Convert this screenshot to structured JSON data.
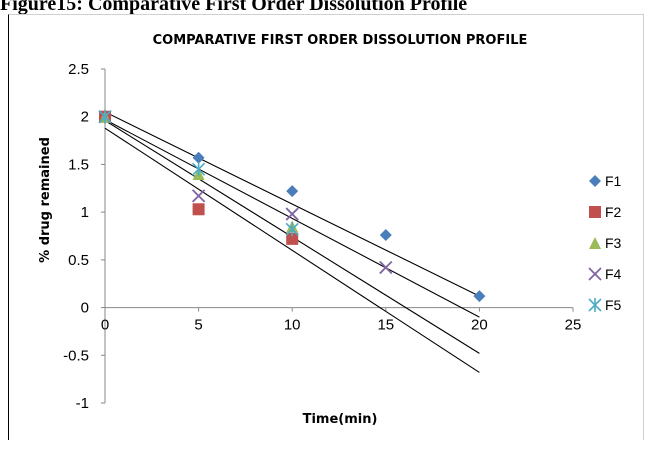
{
  "caption": "Figure15: Comparative First Order Dissolution Profile",
  "chart_data": {
    "type": "scatter",
    "title": "COMPARATIVE FIRST ORDER DISSOLUTION PROFILE",
    "xlabel": "Time(min)",
    "ylabel": "% drug remained",
    "xlim": [
      0,
      25
    ],
    "ylim": [
      -1,
      2.5
    ],
    "x_ticks": [
      0,
      5,
      10,
      15,
      20,
      25
    ],
    "y_ticks": [
      2.5,
      2,
      1.5,
      1,
      0.5,
      0,
      -0.5,
      -1
    ],
    "grid": false,
    "legend_position": "right",
    "series": [
      {
        "name": "F1",
        "color": "#4a7ebb",
        "marker": "diamond",
        "x": [
          0,
          5,
          10,
          15,
          20
        ],
        "y": [
          2.0,
          1.57,
          1.22,
          0.76,
          0.12
        ]
      },
      {
        "name": "F2",
        "color": "#c0504d",
        "marker": "square",
        "x": [
          0,
          5,
          10
        ],
        "y": [
          2.0,
          1.03,
          0.72
        ]
      },
      {
        "name": "F3",
        "color": "#9bbb59",
        "marker": "triangle",
        "x": [
          0,
          5,
          10
        ],
        "y": [
          2.0,
          1.4,
          0.85
        ]
      },
      {
        "name": "F4",
        "color": "#8064a2",
        "marker": "x",
        "x": [
          0,
          5,
          10,
          15
        ],
        "y": [
          2.0,
          1.17,
          0.98,
          0.42
        ]
      },
      {
        "name": "F5",
        "color": "#4bacc6",
        "marker": "asterisk",
        "x": [
          0,
          5,
          10
        ],
        "y": [
          2.0,
          1.45,
          0.82
        ]
      }
    ],
    "trendlines": [
      {
        "x": [
          0,
          20
        ],
        "y": [
          2.05,
          0.12
        ]
      },
      {
        "x": [
          0,
          20
        ],
        "y": [
          1.97,
          -0.1
        ]
      },
      {
        "x": [
          0,
          20
        ],
        "y": [
          1.96,
          -0.48
        ]
      },
      {
        "x": [
          0,
          20
        ],
        "y": [
          1.88,
          -0.68
        ]
      }
    ]
  }
}
